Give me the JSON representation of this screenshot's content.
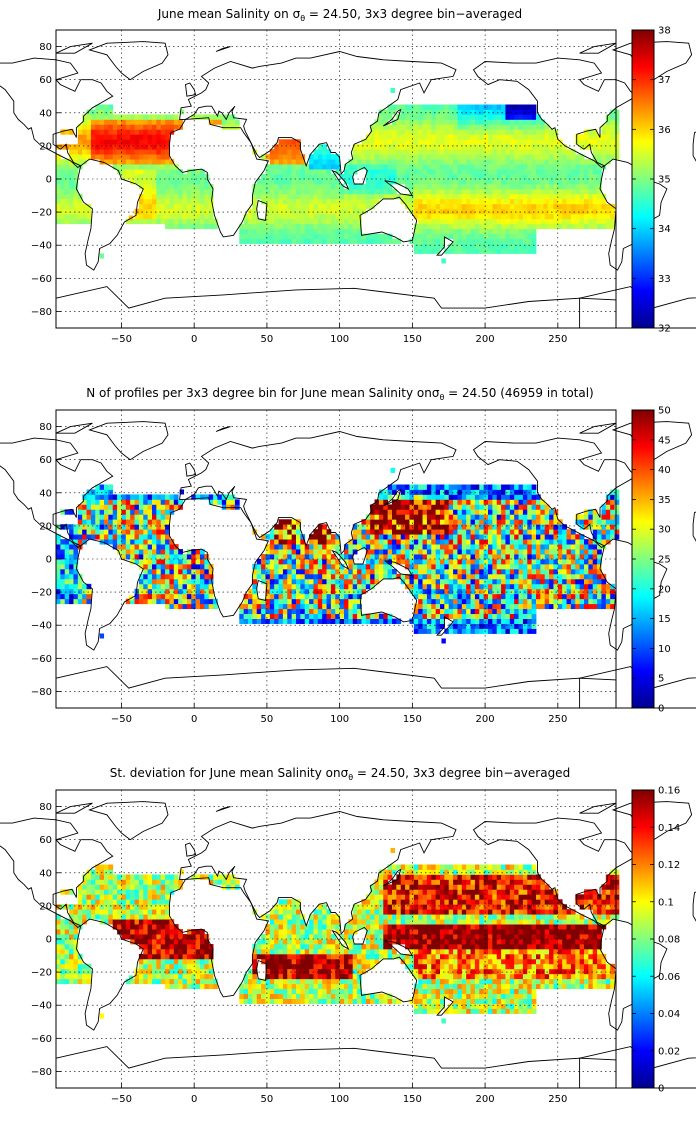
{
  "chart_data": [
    {
      "type": "heatmap",
      "title_pre": "June mean Salinity on ",
      "title_sym": "σ",
      "title_sub": "θ",
      "title_post": " = 24.50, 3x3 degree bin−averaged",
      "xlim": [
        -95,
        290
      ],
      "ylim": [
        -90,
        90
      ],
      "xticks": [
        -50,
        0,
        50,
        100,
        150,
        200,
        250
      ],
      "yticks": [
        80,
        60,
        40,
        20,
        0,
        -20,
        -40,
        -60,
        -80
      ],
      "grid": true,
      "colorbar": {
        "colormap": "jet",
        "min": 32,
        "max": 38,
        "ticks": [
          32,
          33,
          34,
          35,
          36,
          37,
          38
        ],
        "labels": [
          "32",
          "33",
          "34",
          "35",
          "36",
          "37",
          "38"
        ],
        "position": "right"
      }
    },
    {
      "type": "heatmap",
      "title_pre": "N of profiles per 3x3 degree bin for June mean Salinity on",
      "title_sym": "σ",
      "title_sub": "θ",
      "title_post": " = 24.50 (46959 in total)",
      "xlim": [
        -95,
        290
      ],
      "ylim": [
        -90,
        90
      ],
      "xticks": [
        -50,
        0,
        50,
        100,
        150,
        200,
        250
      ],
      "yticks": [
        80,
        60,
        40,
        20,
        0,
        -20,
        -40,
        -60,
        -80
      ],
      "grid": true,
      "colorbar": {
        "colormap": "jet",
        "min": 0,
        "max": 50,
        "ticks": [
          0,
          5,
          10,
          15,
          20,
          25,
          30,
          35,
          40,
          45,
          50
        ],
        "labels": [
          "0",
          "5",
          "10",
          "15",
          "20",
          "25",
          "30",
          "35",
          "40",
          "45",
          "50"
        ],
        "position": "right"
      }
    },
    {
      "type": "heatmap",
      "title_pre": "St. deviation for June mean Salinity on",
      "title_sym": "σ",
      "title_sub": "θ",
      "title_post": " = 24.50, 3x3 degree bin−averaged",
      "xlim": [
        -95,
        290
      ],
      "ylim": [
        -90,
        90
      ],
      "xticks": [
        -50,
        0,
        50,
        100,
        150,
        200,
        250
      ],
      "yticks": [
        80,
        60,
        40,
        20,
        0,
        -20,
        -40,
        -60,
        -80
      ],
      "grid": true,
      "colorbar": {
        "colormap": "jet",
        "min": 0,
        "max": 0.16,
        "ticks": [
          0,
          0.02,
          0.04,
          0.06,
          0.08,
          0.1,
          0.12,
          0.14,
          0.16
        ],
        "labels": [
          "0",
          "0.02",
          "0.04",
          "0.06",
          "0.08",
          "0.1",
          "0.12",
          "0.14",
          "0.16"
        ],
        "position": "right"
      }
    }
  ]
}
